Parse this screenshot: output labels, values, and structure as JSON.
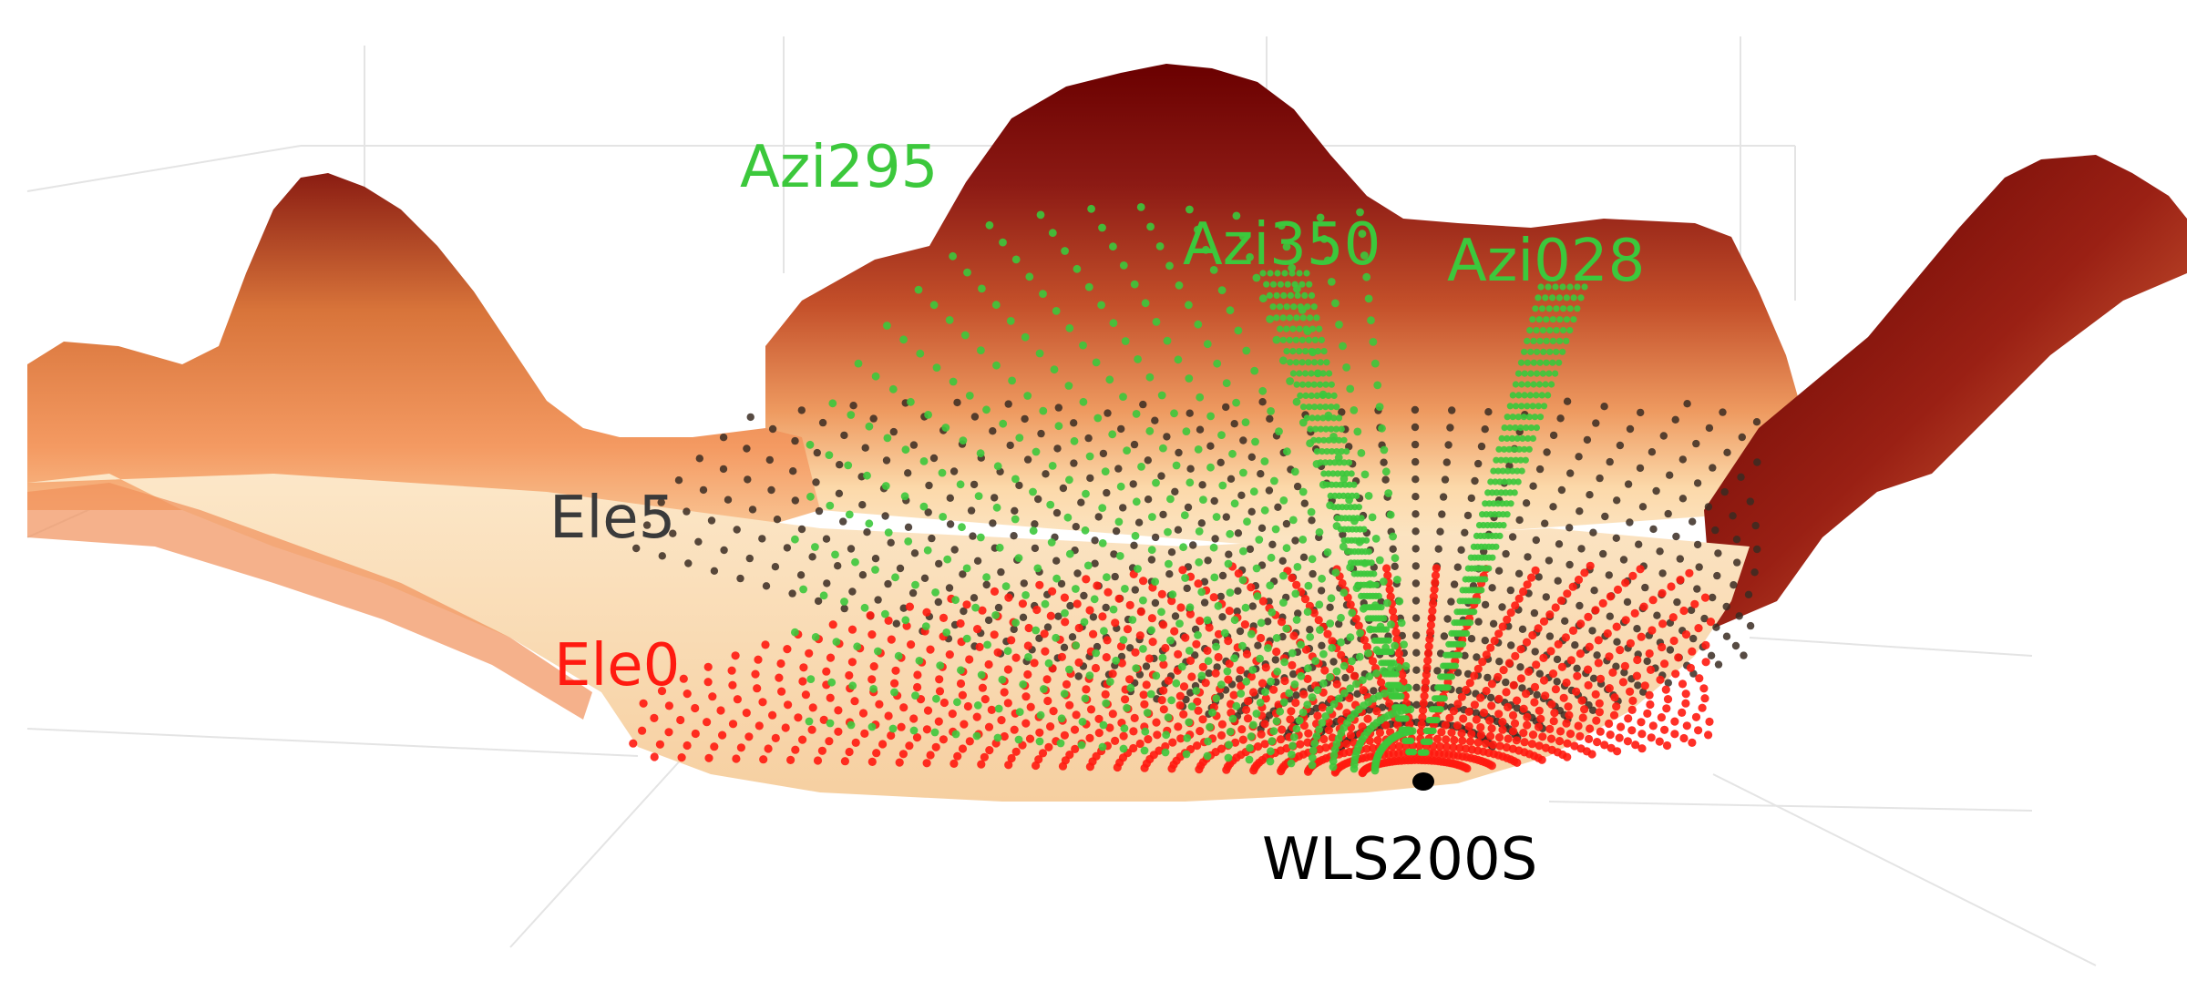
{
  "figure": {
    "scan_labels": {
      "azi295": "Azi295",
      "azi350": "Azi350",
      "azi028": "Azi028",
      "ele5": "Ele5",
      "ele0": "Ele0"
    },
    "instrument_label": "WLS200S",
    "colors": {
      "azimuth_scans": "#3cc83c",
      "elevation5_scan": "#3a2c22",
      "elevation0_scan": "#ff1a10",
      "terrain_high": "#6a0000",
      "terrain_low": "#fbe0b8",
      "instrument": "#000000"
    }
  }
}
